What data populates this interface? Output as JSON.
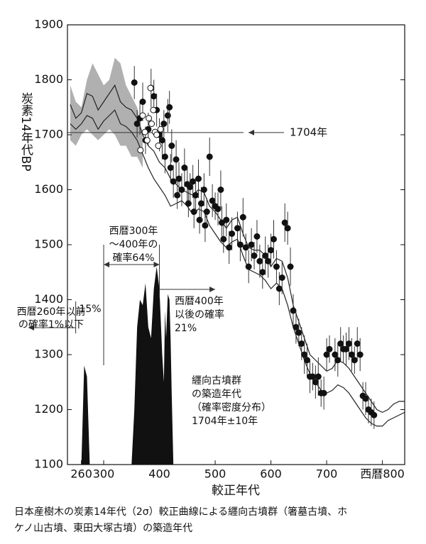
{
  "chart_data": {
    "type": "scatter",
    "ylabel": "炭素14年代BP",
    "xlabel": "較正年代",
    "caption": [
      "日本産樹木の炭素14年代（2σ）較正曲線による纒向古墳群（箸墓古墳、ホ",
      "ケノ山古墳、東田大塚古墳）の築造年代"
    ],
    "xlim": [
      235,
      840
    ],
    "ylim": [
      1100,
      1900
    ],
    "xticks": [
      260,
      300,
      400,
      500,
      600,
      700,
      {
        "value": 800,
        "label": "西暦800"
      }
    ],
    "yticks": [
      1100,
      1200,
      1300,
      1400,
      1500,
      1600,
      1700,
      1800,
      1900
    ],
    "reference_line": {
      "value": 1704,
      "label": "1704年"
    },
    "annotations": [
      {
        "lines": [
          "西暦300年",
          "～400年の",
          "確率64%"
        ]
      },
      {
        "lines": [
          "西暦400年",
          "以後の確率",
          "21%"
        ]
      },
      {
        "lines": [
          "西暦260年以前",
          "の確率1%以下"
        ]
      },
      {
        "lines": [
          "15%"
        ]
      },
      {
        "lines": [
          "纒向古墳群",
          "の築造年代",
          "（確率密度分布）",
          "1704年±10年"
        ]
      }
    ],
    "band": {
      "color": "#b0b0b0",
      "x": [
        240,
        250,
        260,
        270,
        280,
        290,
        300,
        310,
        320,
        330,
        340,
        350,
        360,
        370
      ],
      "upper": [
        1790,
        1760,
        1750,
        1800,
        1830,
        1810,
        1790,
        1800,
        1840,
        1830,
        1790,
        1770,
        1750,
        1700
      ],
      "lower": [
        1690,
        1680,
        1700,
        1710,
        1700,
        1690,
        1700,
        1710,
        1700,
        1680,
        1680,
        1660,
        1660,
        1640
      ]
    },
    "curves": {
      "color": "#222",
      "x": [
        240,
        250,
        260,
        270,
        280,
        290,
        300,
        310,
        320,
        330,
        340,
        350,
        360,
        370,
        380,
        390,
        400,
        410,
        420,
        430,
        440,
        450,
        460,
        470,
        480,
        490,
        500,
        510,
        520,
        530,
        540,
        550,
        560,
        570,
        580,
        590,
        600,
        610,
        620,
        630,
        640,
        650,
        660,
        670,
        680,
        690,
        700,
        710,
        720,
        730,
        740,
        750,
        760,
        770,
        780,
        790,
        800,
        810,
        820,
        830,
        840
      ],
      "upper": [
        1755,
        1730,
        1740,
        1775,
        1770,
        1745,
        1760,
        1775,
        1790,
        1760,
        1750,
        1745,
        1730,
        1700,
        1680,
        1670,
        1650,
        1640,
        1620,
        1610,
        1600,
        1595,
        1590,
        1600,
        1595,
        1570,
        1560,
        1545,
        1530,
        1545,
        1550,
        1520,
        1495,
        1490,
        1490,
        1480,
        1460,
        1475,
        1470,
        1440,
        1390,
        1360,
        1330,
        1300,
        1290,
        1280,
        1270,
        1275,
        1290,
        1285,
        1275,
        1260,
        1245,
        1230,
        1215,
        1200,
        1195,
        1200,
        1210,
        1215,
        1215
      ],
      "lower": [
        1720,
        1710,
        1720,
        1735,
        1730,
        1710,
        1725,
        1735,
        1745,
        1720,
        1715,
        1705,
        1690,
        1665,
        1640,
        1620,
        1605,
        1590,
        1570,
        1575,
        1580,
        1570,
        1555,
        1565,
        1560,
        1535,
        1520,
        1505,
        1495,
        1505,
        1510,
        1480,
        1455,
        1450,
        1445,
        1435,
        1420,
        1430,
        1420,
        1390,
        1350,
        1320,
        1290,
        1265,
        1250,
        1235,
        1230,
        1235,
        1245,
        1240,
        1230,
        1215,
        1200,
        1185,
        1175,
        1170,
        1170,
        1180,
        1185,
        1190,
        1195
      ]
    },
    "density": {
      "color": "#111",
      "x": [
        260,
        265,
        270,
        275,
        300,
        350,
        355,
        360,
        365,
        370,
        375,
        380,
        385,
        390,
        395,
        400,
        405,
        408,
        410,
        412,
        415,
        418,
        420,
        422,
        425
      ],
      "values": [
        1100,
        1280,
        1260,
        1100,
        null,
        1100,
        1200,
        1350,
        1400,
        1390,
        1430,
        1350,
        1330,
        1420,
        1460,
        1420,
        1300,
        1250,
        1380,
        1330,
        1410,
        1400,
        1330,
        1230,
        1100
      ]
    },
    "series": [
      {
        "color": "#111",
        "x": [
          355,
          360,
          365,
          370,
          375,
          380,
          385,
          390,
          395,
          400,
          405,
          408,
          410,
          415,
          418,
          420,
          422,
          425,
          430,
          432,
          435,
          440,
          445,
          450,
          452,
          455,
          460,
          462,
          465,
          470,
          472,
          475,
          480,
          482,
          485,
          490,
          495,
          500,
          505,
          510,
          512,
          515,
          520,
          525,
          530,
          540,
          545,
          550,
          555,
          560,
          565,
          570,
          575,
          580,
          585,
          590,
          595,
          600,
          605,
          610,
          615,
          620,
          625,
          630,
          635,
          640,
          645,
          650,
          655,
          660,
          665,
          670,
          675,
          680,
          685,
          690,
          695,
          700,
          705,
          715,
          720,
          725,
          730,
          735,
          740,
          745,
          750,
          755,
          760,
          765,
          770,
          775,
          780,
          785
        ],
        "values": [
          1795,
          1720,
          1730,
          1760,
          1690,
          1710,
          1785,
          1770,
          1745,
          1700,
          1690,
          1720,
          1660,
          1735,
          1750,
          1640,
          1680,
          1615,
          1655,
          1590,
          1620,
          1600,
          1640,
          1610,
          1575,
          1605,
          1615,
          1560,
          1590,
          1620,
          1545,
          1575,
          1600,
          1535,
          1560,
          1660,
          1580,
          1570,
          1565,
          1600,
          1540,
          1510,
          1545,
          1495,
          1520,
          1530,
          1500,
          1550,
          1495,
          1460,
          1500,
          1480,
          1515,
          1470,
          1450,
          1480,
          1470,
          1490,
          1510,
          1460,
          1420,
          1440,
          1540,
          1530,
          1460,
          1380,
          1350,
          1340,
          1320,
          1300,
          1290,
          1260,
          1260,
          1250,
          1260,
          1230,
          1230,
          1300,
          1310,
          1300,
          1290,
          1320,
          1310,
          1310,
          1320,
          1300,
          1290,
          1320,
          1300,
          1225,
          1220,
          1200,
          1195,
          1190
        ],
        "errors": [
          30,
          25,
          30,
          35,
          25,
          30,
          35,
          30,
          30,
          30,
          35,
          25,
          30,
          30,
          30,
          25,
          30,
          30,
          35,
          25,
          30,
          30,
          35,
          30,
          25,
          25,
          30,
          30,
          30,
          35,
          25,
          30,
          30,
          30,
          25,
          35,
          30,
          25,
          30,
          35,
          30,
          25,
          30,
          30,
          30,
          30,
          30,
          35,
          25,
          30,
          30,
          25,
          30,
          30,
          30,
          35,
          30,
          30,
          35,
          30,
          30,
          30,
          35,
          30,
          35,
          30,
          30,
          25,
          30,
          35,
          30,
          30,
          25,
          30,
          35,
          25,
          30,
          30,
          25,
          30,
          30,
          30,
          25,
          30,
          30,
          30,
          25,
          30,
          30,
          25,
          30,
          25,
          25,
          25
        ]
      },
      {
        "color": "#ffffff",
        "x": [
          366,
          370,
          374,
          378,
          381,
          384,
          386,
          389,
          392,
          395,
          398,
          402
        ],
        "values": [
          1672,
          1735,
          1705,
          1690,
          1730,
          1785,
          1720,
          1745,
          1705,
          1700,
          1680,
          1710
        ]
      }
    ]
  }
}
